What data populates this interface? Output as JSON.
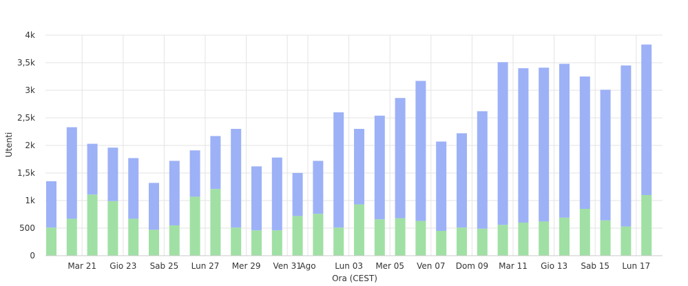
{
  "chart_data": {
    "type": "bar",
    "stacked": true,
    "xlabel": "Ora (CEST)",
    "ylabel": "Utenti",
    "ylim": [
      0,
      4000
    ],
    "yticks": [
      0,
      500,
      1000,
      1500,
      2000,
      2500,
      3000,
      3500,
      4000
    ],
    "ytick_labels": [
      "0",
      "500",
      "1k",
      "1,5k",
      "2k",
      "2,5k",
      "3k",
      "3,5k",
      "4k"
    ],
    "grid": true,
    "legend": "none",
    "xtick_labels": [
      {
        "label": "Mar 21",
        "at_bar": 2
      },
      {
        "label": "Gio 23",
        "at_bar": 4
      },
      {
        "label": "Sab 25",
        "at_bar": 6
      },
      {
        "label": "Lun 27",
        "at_bar": 8
      },
      {
        "label": "Mer 29",
        "at_bar": 10
      },
      {
        "label": "Ven 31",
        "at_bar": 12
      },
      {
        "label": "Ago",
        "at_bar": 13
      },
      {
        "label": "Lun 03",
        "at_bar": 15
      },
      {
        "label": "Mer 05",
        "at_bar": 17
      },
      {
        "label": "Ven 07",
        "at_bar": 19
      },
      {
        "label": "Dom 09",
        "at_bar": 21
      },
      {
        "label": "Mar 11",
        "at_bar": 23
      },
      {
        "label": "Gio 13",
        "at_bar": 25
      },
      {
        "label": "Sab 15",
        "at_bar": 27
      },
      {
        "label": "Lun 17",
        "at_bar": 29
      }
    ],
    "series": [
      {
        "color": "#a0e0a4",
        "values": [
          510,
          670,
          1110,
          990,
          670,
          470,
          550,
          1070,
          1210,
          510,
          460,
          460,
          720,
          760,
          510,
          930,
          660,
          680,
          630,
          450,
          510,
          490,
          560,
          600,
          620,
          690,
          850,
          640,
          530,
          1100
        ]
      },
      {
        "color": "#9db1f7",
        "values": [
          840,
          1660,
          920,
          970,
          1100,
          850,
          1170,
          840,
          960,
          1790,
          1160,
          1320,
          780,
          960,
          2090,
          1370,
          1880,
          2180,
          2540,
          1620,
          1710,
          2130,
          2950,
          2800,
          2790,
          2790,
          2400,
          2370,
          2920,
          2730
        ]
      }
    ]
  }
}
